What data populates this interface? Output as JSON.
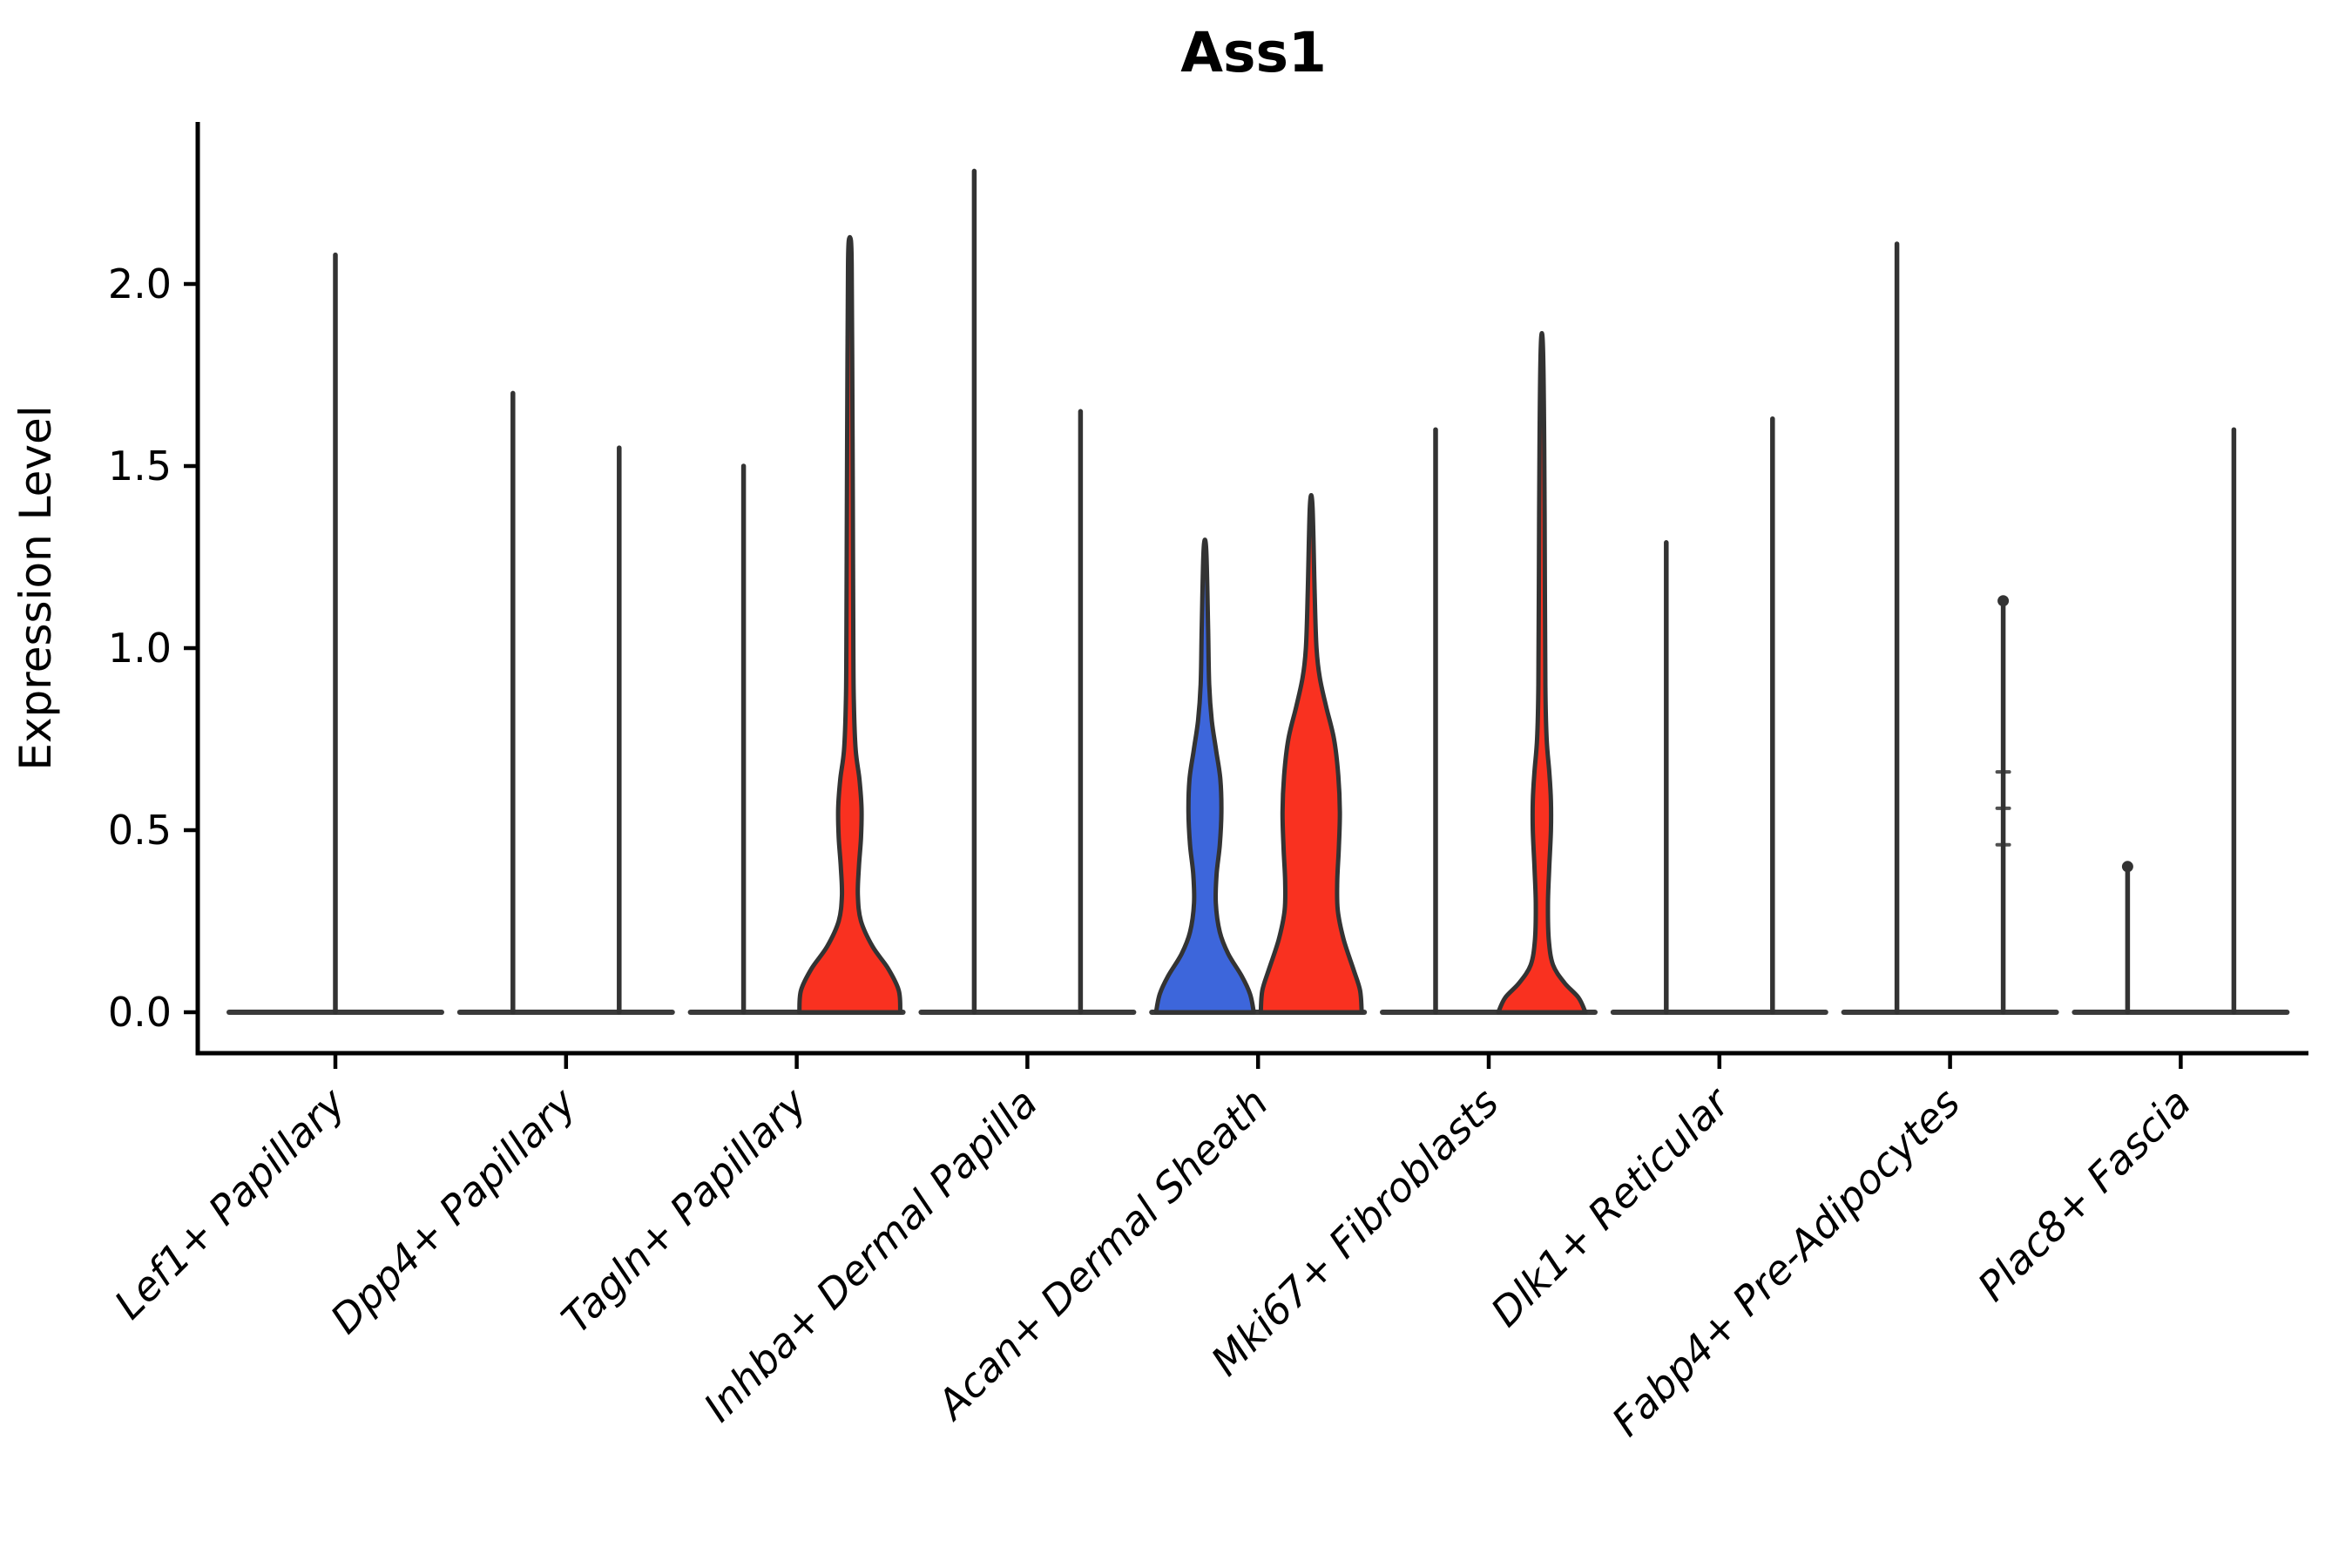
{
  "chart_data": {
    "type": "violin",
    "title": "Ass1",
    "ylabel": "Expression Level",
    "xlabel": "",
    "ylim": [
      -0.11,
      2.43
    ],
    "grid": false,
    "legend_position": "none",
    "y_ticks": [
      {
        "label": "0.0",
        "value": 0.0
      },
      {
        "label": "0.5",
        "value": 0.5
      },
      {
        "label": "1.0",
        "value": 1.0
      },
      {
        "label": "1.5",
        "value": 1.5
      },
      {
        "label": "2.0",
        "value": 2.0
      }
    ],
    "categories": [
      "Lef1+ Papillary",
      "Dpp4+ Papillary",
      "Tagln+ Papillary",
      "Inhba+ Dermal Papilla",
      "Acan+ Dermal Sheath",
      "Mki67+ Fibroblasts",
      "Dlk1+ Reticular",
      "Fabp4+ Pre-Adipocytes",
      "Plac8+ Fascia"
    ],
    "split_fill_colors": {
      "group1_blue": "#3D66DB",
      "group2_red": "#F93120"
    },
    "violin_outline_color": "#333333",
    "baseline_color": "#3a3a3a",
    "axis_color": "#000000",
    "violins": [
      {
        "category": "Lef1+ Papillary",
        "cells": [
          {
            "slot": "center",
            "style": "spike",
            "max_expression": 2.08
          }
        ]
      },
      {
        "category": "Dpp4+ Papillary",
        "cells": [
          {
            "slot": "left",
            "style": "spike",
            "max_expression": 1.7
          },
          {
            "slot": "right",
            "style": "spike",
            "max_expression": 1.55
          }
        ]
      },
      {
        "category": "Tagln+ Papillary",
        "cells": [
          {
            "slot": "left",
            "style": "spike",
            "max_expression": 1.5
          },
          {
            "slot": "right",
            "style": "violin",
            "fill": "#F93120",
            "max_expression": 2.12,
            "density_profile": [
              [
                0,
                0.95
              ],
              [
                0.06,
                0.92
              ],
              [
                0.12,
                0.72
              ],
              [
                0.18,
                0.43
              ],
              [
                0.25,
                0.21
              ],
              [
                0.32,
                0.15
              ],
              [
                0.4,
                0.17
              ],
              [
                0.48,
                0.21
              ],
              [
                0.56,
                0.22
              ],
              [
                0.64,
                0.18
              ],
              [
                0.72,
                0.11
              ],
              [
                0.85,
                0.075
              ],
              [
                1.0,
                0.065
              ],
              [
                1.4,
                0.055
              ],
              [
                1.8,
                0.045
              ],
              [
                2.05,
                0.035
              ],
              [
                2.12,
                0.02
              ]
            ]
          }
        ]
      },
      {
        "category": "Inhba+ Dermal Papilla",
        "cells": [
          {
            "slot": "left",
            "style": "spike",
            "max_expression": 2.31
          },
          {
            "slot": "right",
            "style": "spike",
            "max_expression": 1.65
          }
        ]
      },
      {
        "category": "Acan+ Dermal Sheath",
        "cells": [
          {
            "slot": "left",
            "style": "violin",
            "fill": "#3D66DB",
            "max_expression": 1.27,
            "density_profile": [
              [
                0,
                0.92
              ],
              [
                0.05,
                0.85
              ],
              [
                0.1,
                0.69
              ],
              [
                0.16,
                0.44
              ],
              [
                0.22,
                0.28
              ],
              [
                0.3,
                0.205
              ],
              [
                0.38,
                0.22
              ],
              [
                0.46,
                0.28
              ],
              [
                0.55,
                0.31
              ],
              [
                0.64,
                0.29
              ],
              [
                0.72,
                0.21
              ],
              [
                0.8,
                0.13
              ],
              [
                0.9,
                0.08
              ],
              [
                1.05,
                0.06
              ],
              [
                1.27,
                0.025
              ]
            ]
          },
          {
            "slot": "right",
            "style": "violin",
            "fill": "#F93120",
            "max_expression": 1.39,
            "density_profile": [
              [
                0,
                0.95
              ],
              [
                0.06,
                0.92
              ],
              [
                0.12,
                0.79
              ],
              [
                0.2,
                0.61
              ],
              [
                0.28,
                0.5
              ],
              [
                0.36,
                0.49
              ],
              [
                0.45,
                0.52
              ],
              [
                0.55,
                0.54
              ],
              [
                0.65,
                0.51
              ],
              [
                0.75,
                0.43
              ],
              [
                0.84,
                0.28
              ],
              [
                0.92,
                0.16
              ],
              [
                1.0,
                0.1
              ],
              [
                1.15,
                0.065
              ],
              [
                1.39,
                0.025
              ]
            ]
          }
        ]
      },
      {
        "category": "Mki67+ Fibroblasts",
        "cells": [
          {
            "slot": "left",
            "style": "spike",
            "max_expression": 1.6
          },
          {
            "slot": "right",
            "style": "violin",
            "fill": "#F93120",
            "max_expression": 1.83,
            "density_profile": [
              [
                0,
                0.82
              ],
              [
                0.04,
                0.69
              ],
              [
                0.08,
                0.43
              ],
              [
                0.13,
                0.21
              ],
              [
                0.2,
                0.13
              ],
              [
                0.3,
                0.115
              ],
              [
                0.4,
                0.14
              ],
              [
                0.5,
                0.17
              ],
              [
                0.58,
                0.17
              ],
              [
                0.66,
                0.14
              ],
              [
                0.75,
                0.09
              ],
              [
                0.9,
                0.065
              ],
              [
                1.2,
                0.055
              ],
              [
                1.55,
                0.045
              ],
              [
                1.83,
                0.02
              ]
            ]
          }
        ]
      },
      {
        "category": "Dlk1+ Reticular",
        "cells": [
          {
            "slot": "left",
            "style": "spike",
            "max_expression": 1.29
          },
          {
            "slot": "right",
            "style": "spike",
            "max_expression": 1.63
          }
        ]
      },
      {
        "category": "Fabp4+ Pre-Adipocytes",
        "cells": [
          {
            "slot": "left",
            "style": "spike",
            "max_expression": 2.11
          },
          {
            "slot": "right",
            "style": "spike",
            "max_expression": 1.13,
            "top_knob": true,
            "bumps": [
              0.66,
              0.56,
              0.46
            ]
          }
        ]
      },
      {
        "category": "Plac8+ Fascia",
        "cells": [
          {
            "slot": "left",
            "style": "spike",
            "max_expression": 0.4,
            "top_knob": true
          },
          {
            "slot": "right",
            "style": "spike",
            "max_expression": 1.6
          }
        ]
      }
    ]
  }
}
